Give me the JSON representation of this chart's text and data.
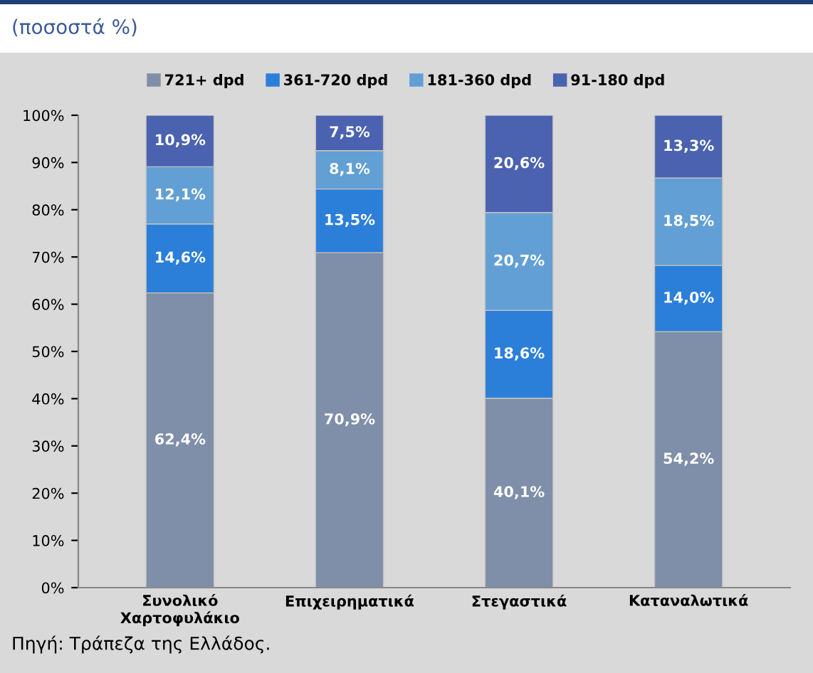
{
  "chart_data": {
    "type": "bar",
    "stacked": true,
    "title": "(ποσοστά %)",
    "categories": [
      "Συνολικό\nΧαρτοφυλάκιο",
      "Επιχειρηματικά",
      "Στεγαστικά",
      "Καταναλωτικά"
    ],
    "series": [
      {
        "name": "721+ dpd",
        "color": "#7f8fa9",
        "values": [
          62.4,
          70.9,
          40.1,
          54.2
        ],
        "value_labels": [
          "62,4%",
          "70,9%",
          "40,1%",
          "54,2%"
        ]
      },
      {
        "name": "361-720 dpd",
        "color": "#2b7fd9",
        "values": [
          14.6,
          13.5,
          18.6,
          14.0
        ],
        "value_labels": [
          "14,6%",
          "13,5%",
          "18,6%",
          "14,0%"
        ]
      },
      {
        "name": "181-360 dpd",
        "color": "#629fd4",
        "values": [
          12.1,
          8.1,
          20.7,
          18.5
        ],
        "value_labels": [
          "12,1%",
          "8,1%",
          "20,7%",
          "18,5%"
        ]
      },
      {
        "name": "91-180 dpd",
        "color": "#4a62b0",
        "values": [
          10.9,
          7.5,
          20.6,
          13.3
        ],
        "value_labels": [
          "10,9%",
          "7,5%",
          "20,6%",
          "13,3%"
        ]
      }
    ],
    "ylim": [
      0,
      100
    ],
    "yticks": [
      {
        "value": 0,
        "label": "0%"
      },
      {
        "value": 10,
        "label": "10%"
      },
      {
        "value": 20,
        "label": "20%"
      },
      {
        "value": 30,
        "label": "30%"
      },
      {
        "value": 40,
        "label": "40%"
      },
      {
        "value": 50,
        "label": "50%"
      },
      {
        "value": 60,
        "label": "60%"
      },
      {
        "value": 70,
        "label": "70%"
      },
      {
        "value": 80,
        "label": "80%"
      },
      {
        "value": 90,
        "label": "90%"
      },
      {
        "value": 100,
        "label": "100%"
      }
    ],
    "grid": false,
    "legend": "top",
    "annotations": [
      "Πηγή: Τράπεζα της Ελλάδος."
    ]
  }
}
